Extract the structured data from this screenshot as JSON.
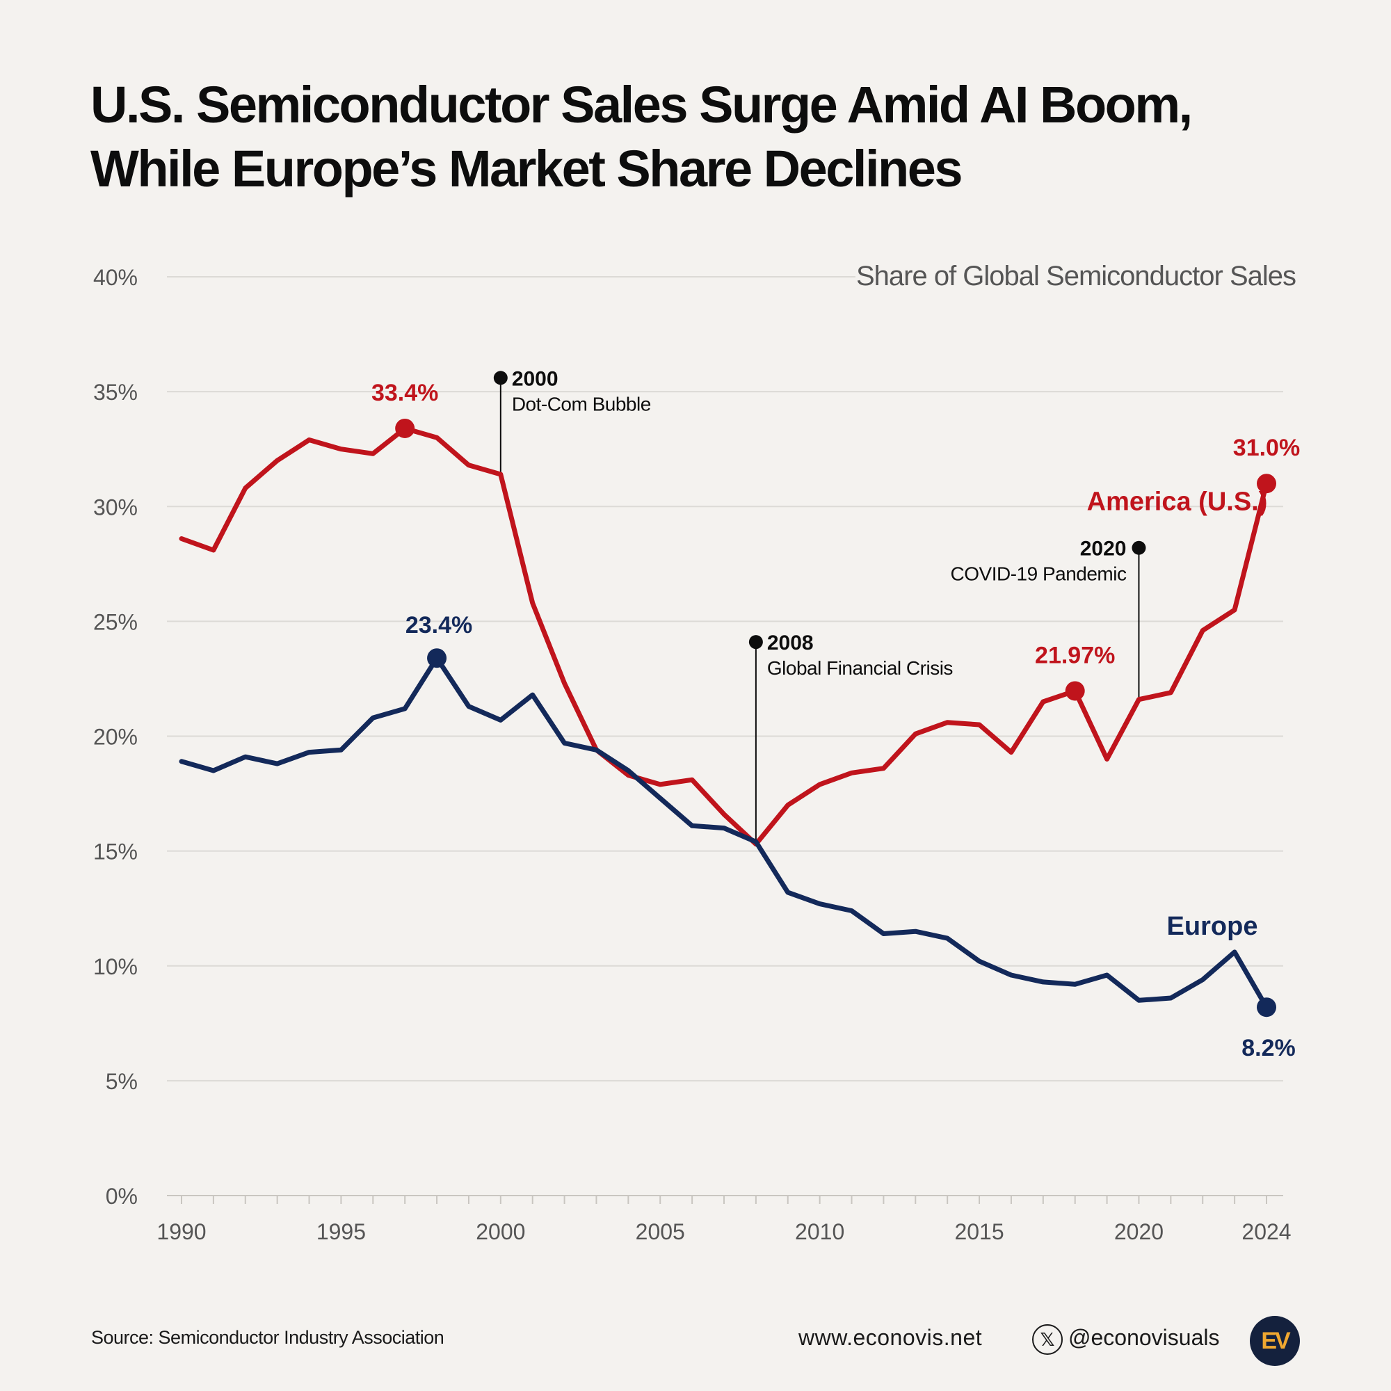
{
  "title": {
    "line1": "U.S. Semiconductor Sales Surge Amid AI Boom,",
    "line2": "While Europe’s Market Share Declines"
  },
  "colors": {
    "us": "#c0141c",
    "europe": "#13295a",
    "event": "#0d0d0d",
    "grid": "#dcdad6",
    "axis_text": "#555555",
    "background": "#f4f2ef",
    "logo_bg": "#14213d",
    "logo_text": "#f0a830"
  },
  "chart_data": {
    "type": "line",
    "title": "Share of Global Semiconductor Sales",
    "xlabel": "",
    "ylabel": "",
    "xlim": [
      1990,
      2024
    ],
    "ylim": [
      0,
      40
    ],
    "grid": true,
    "x_ticks": [
      "1990",
      "1995",
      "2000",
      "2005",
      "2010",
      "2015",
      "2020",
      "2024"
    ],
    "y_ticks": [
      "0%",
      "5%",
      "10%",
      "15%",
      "20%",
      "25%",
      "30%",
      "35%",
      "40%"
    ],
    "x": [
      1990,
      1991,
      1992,
      1993,
      1994,
      1995,
      1996,
      1997,
      1998,
      1999,
      2000,
      2001,
      2002,
      2003,
      2004,
      2005,
      2006,
      2007,
      2008,
      2009,
      2010,
      2011,
      2012,
      2013,
      2014,
      2015,
      2016,
      2017,
      2018,
      2019,
      2020,
      2021,
      2022,
      2023,
      2024
    ],
    "series": [
      {
        "name": "America (U.S.)",
        "color_key": "us",
        "values": [
          28.6,
          28.1,
          30.8,
          32.0,
          32.9,
          32.5,
          32.3,
          33.4,
          33.0,
          31.8,
          31.4,
          25.8,
          22.3,
          19.4,
          18.3,
          17.9,
          18.1,
          16.6,
          15.3,
          17.0,
          17.9,
          18.4,
          18.6,
          20.1,
          20.6,
          20.5,
          19.3,
          21.5,
          21.97,
          19.0,
          21.6,
          21.9,
          24.6,
          25.5,
          31.0
        ],
        "label_year": 2021.2,
        "label_value": 30.0,
        "highlights": [
          {
            "year": 1997,
            "value": 33.4,
            "label": "33.4%",
            "dy": 40
          },
          {
            "year": 2018,
            "value": 21.97,
            "label": "21.97%",
            "dy": 40
          },
          {
            "year": 2024,
            "value": 31.0,
            "label": "31.0%",
            "dy": 40
          }
        ]
      },
      {
        "name": "Europe",
        "color_key": "europe",
        "values": [
          18.9,
          18.5,
          19.1,
          18.8,
          19.3,
          19.4,
          20.8,
          21.2,
          23.4,
          21.3,
          20.7,
          21.8,
          19.7,
          19.4,
          18.5,
          17.3,
          16.1,
          16.0,
          15.4,
          13.2,
          12.7,
          12.4,
          11.4,
          11.5,
          11.2,
          10.2,
          9.6,
          9.3,
          9.2,
          9.6,
          8.5,
          8.6,
          9.4,
          10.6,
          8.2
        ]
      }
    ],
    "europe_label": {
      "text": "Europe",
      "year": 2022.3,
      "value": 11.5
    },
    "europe_point_labels": [
      {
        "year": 1998,
        "value": 23.4,
        "label": "23.4%",
        "pos": "above"
      },
      {
        "year": 2024,
        "value": 8.2,
        "label": "8.2%",
        "pos": "below"
      }
    ],
    "events": [
      {
        "year": 2000,
        "marker_value": 35.6,
        "line_to": 31.4,
        "year_label": "2000",
        "desc": "Dot-Com Bubble",
        "side": "right"
      },
      {
        "year": 2008,
        "marker_value": 24.1,
        "line_to": 15.3,
        "year_label": "2008",
        "desc": "Global Financial Crisis",
        "side": "right"
      },
      {
        "year": 2020,
        "marker_value": 28.2,
        "line_to": 21.6,
        "year_label": "2020",
        "desc": "COVID-19 Pandemic",
        "side": "left"
      }
    ]
  },
  "footer": {
    "source": "Source: Semiconductor Industry Association",
    "website": "www.econovis.net",
    "x_icon": "x-logo-icon",
    "x_glyph": "𝕏",
    "handle": "@econovisuals",
    "logo_text": "EV"
  }
}
